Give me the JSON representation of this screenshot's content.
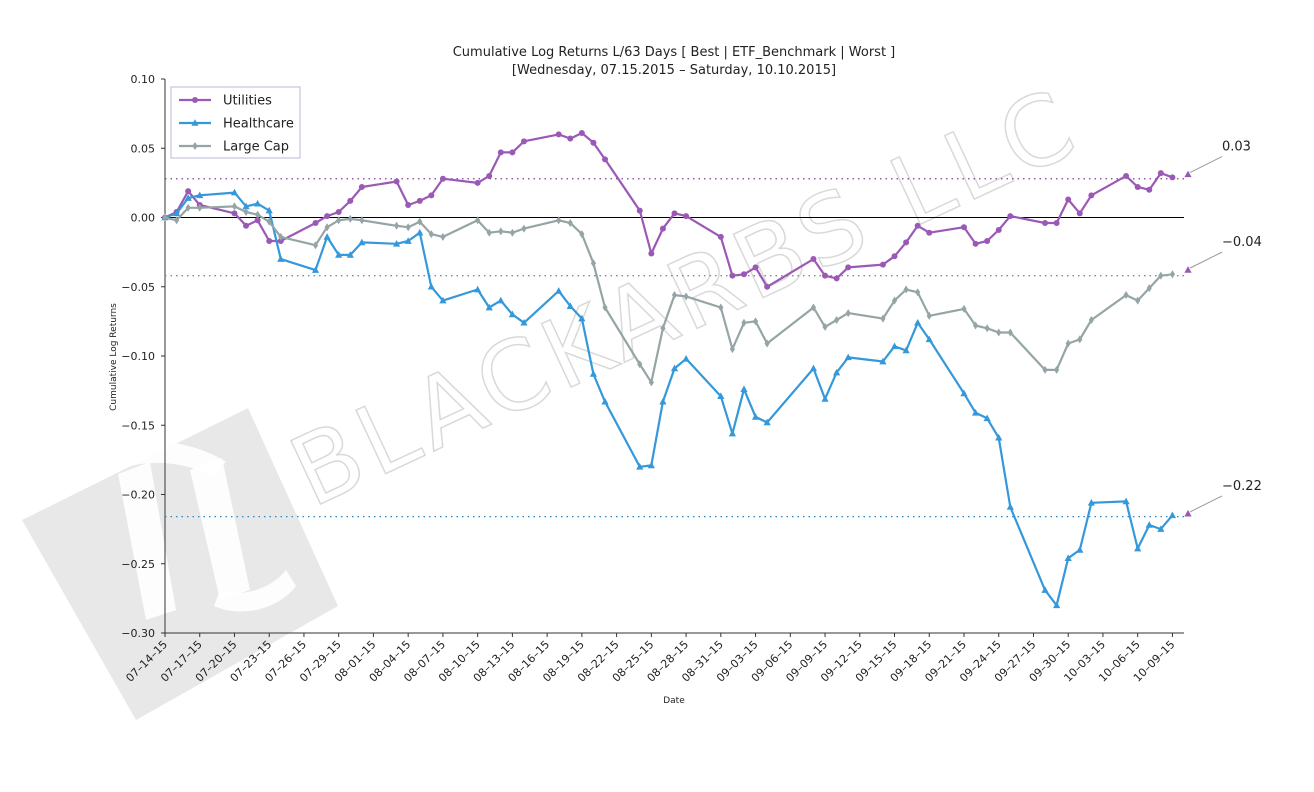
{
  "chart_data": {
    "type": "line",
    "title": "Cumulative Log Returns L/63 Days [ Best | ETF_Benchmark | Worst ]",
    "subtitle": "[Wednesday, 07.15.2015 – Saturday, 10.10.2015]",
    "xlabel": "Date",
    "ylabel": "Cumulative Log Returns",
    "ylim": [
      -0.3,
      0.1
    ],
    "xlim": [
      "2015-07-14",
      "2015-10-10"
    ],
    "grid": false,
    "legend_position": "top-left",
    "y_ticks": [
      "0.10",
      "0.05",
      "0.00",
      "−0.05",
      "−0.10",
      "−0.15",
      "−0.20",
      "−0.25",
      "−0.30"
    ],
    "y_tick_values": [
      0.1,
      0.05,
      0.0,
      -0.05,
      -0.1,
      -0.15,
      -0.2,
      -0.25,
      -0.3
    ],
    "x_ticks": [
      "07–14–15",
      "07–17–15",
      "07–20–15",
      "07–23–15",
      "07–26–15",
      "07–29–15",
      "08–01–15",
      "08–04–15",
      "08–07–15",
      "08–10–15",
      "08–13–15",
      "08–16–15",
      "08–19–15",
      "08–22–15",
      "08–25–15",
      "08–28–15",
      "08–31–15",
      "09–03–15",
      "09–06–15",
      "09–09–15",
      "09–12–15",
      "09–15–15",
      "09–18–15",
      "09–21–15",
      "09–24–15",
      "09–27–15",
      "09–30–15",
      "10–03–15",
      "10–06–15",
      "10–09–15"
    ],
    "x_tick_dates": [
      "2015-07-14",
      "2015-07-17",
      "2015-07-20",
      "2015-07-23",
      "2015-07-26",
      "2015-07-29",
      "2015-08-01",
      "2015-08-04",
      "2015-08-07",
      "2015-08-10",
      "2015-08-13",
      "2015-08-16",
      "2015-08-19",
      "2015-08-22",
      "2015-08-25",
      "2015-08-28",
      "2015-08-31",
      "2015-09-03",
      "2015-09-06",
      "2015-09-09",
      "2015-09-12",
      "2015-09-15",
      "2015-09-18",
      "2015-09-21",
      "2015-09-24",
      "2015-09-27",
      "2015-09-30",
      "2015-10-03",
      "2015-10-06",
      "2015-10-09"
    ],
    "x": [
      "2015-07-14",
      "2015-07-15",
      "2015-07-16",
      "2015-07-17",
      "2015-07-20",
      "2015-07-21",
      "2015-07-22",
      "2015-07-23",
      "2015-07-24",
      "2015-07-27",
      "2015-07-28",
      "2015-07-29",
      "2015-07-30",
      "2015-07-31",
      "2015-08-03",
      "2015-08-04",
      "2015-08-05",
      "2015-08-06",
      "2015-08-07",
      "2015-08-10",
      "2015-08-11",
      "2015-08-12",
      "2015-08-13",
      "2015-08-14",
      "2015-08-17",
      "2015-08-18",
      "2015-08-19",
      "2015-08-20",
      "2015-08-21",
      "2015-08-24",
      "2015-08-25",
      "2015-08-26",
      "2015-08-27",
      "2015-08-28",
      "2015-08-31",
      "2015-09-01",
      "2015-09-02",
      "2015-09-03",
      "2015-09-04",
      "2015-09-08",
      "2015-09-09",
      "2015-09-10",
      "2015-09-11",
      "2015-09-14",
      "2015-09-15",
      "2015-09-16",
      "2015-09-17",
      "2015-09-18",
      "2015-09-21",
      "2015-09-22",
      "2015-09-23",
      "2015-09-24",
      "2015-09-25",
      "2015-09-28",
      "2015-09-29",
      "2015-09-30",
      "2015-10-01",
      "2015-10-02",
      "2015-10-05",
      "2015-10-06",
      "2015-10-07",
      "2015-10-08",
      "2015-10-09"
    ],
    "series": [
      {
        "name": "Utilities",
        "color": "#9b59b6",
        "marker": "circle",
        "values": [
          0.0,
          0.004,
          0.019,
          0.009,
          0.003,
          -0.006,
          -0.002,
          -0.017,
          -0.017,
          -0.004,
          0.001,
          0.004,
          0.012,
          0.022,
          0.026,
          0.009,
          0.012,
          0.016,
          0.028,
          0.025,
          0.03,
          0.047,
          0.047,
          0.055,
          0.06,
          0.057,
          0.061,
          0.054,
          0.042,
          0.005,
          -0.026,
          -0.008,
          0.003,
          0.001,
          -0.014,
          -0.042,
          -0.041,
          -0.036,
          -0.05,
          -0.03,
          -0.042,
          -0.044,
          -0.036,
          -0.034,
          -0.028,
          -0.018,
          -0.006,
          -0.011,
          -0.007,
          -0.019,
          -0.017,
          -0.009,
          0.001,
          -0.004,
          -0.004,
          0.013,
          0.003,
          0.016,
          0.03,
          0.022,
          0.02,
          0.032,
          0.029
        ]
      },
      {
        "name": "Healthcare",
        "color": "#3498db",
        "marker": "triangle",
        "values": [
          0.0,
          0.003,
          0.014,
          0.016,
          0.018,
          0.008,
          0.01,
          0.005,
          -0.03,
          -0.038,
          -0.014,
          -0.027,
          -0.027,
          -0.018,
          -0.019,
          -0.017,
          -0.011,
          -0.05,
          -0.06,
          -0.052,
          -0.065,
          -0.06,
          -0.07,
          -0.076,
          -0.053,
          -0.064,
          -0.073,
          -0.113,
          -0.133,
          -0.18,
          -0.179,
          -0.133,
          -0.109,
          -0.102,
          -0.129,
          -0.156,
          -0.124,
          -0.144,
          -0.148,
          -0.109,
          -0.131,
          -0.112,
          -0.101,
          -0.104,
          -0.093,
          -0.096,
          -0.076,
          -0.088,
          -0.127,
          -0.141,
          -0.145,
          -0.159,
          -0.209,
          -0.269,
          -0.28,
          -0.246,
          -0.24,
          -0.206,
          -0.205,
          -0.239,
          -0.222,
          -0.225,
          -0.215
        ]
      },
      {
        "name": "Large Cap",
        "color": "#95a5a6",
        "marker": "diamond",
        "values": [
          0.0,
          -0.002,
          0.007,
          0.007,
          0.008,
          0.004,
          0.002,
          -0.003,
          -0.014,
          -0.02,
          -0.007,
          -0.002,
          -0.001,
          -0.002,
          -0.006,
          -0.007,
          -0.003,
          -0.012,
          -0.014,
          -0.002,
          -0.011,
          -0.01,
          -0.011,
          -0.008,
          -0.002,
          -0.004,
          -0.012,
          -0.033,
          -0.065,
          -0.106,
          -0.119,
          -0.08,
          -0.056,
          -0.057,
          -0.065,
          -0.095,
          -0.076,
          -0.075,
          -0.091,
          -0.065,
          -0.079,
          -0.074,
          -0.069,
          -0.073,
          -0.06,
          -0.052,
          -0.054,
          -0.071,
          -0.066,
          -0.078,
          -0.08,
          -0.083,
          -0.083,
          -0.11,
          -0.11,
          -0.091,
          -0.088,
          -0.074,
          -0.056,
          -0.06,
          -0.051,
          -0.042,
          -0.041
        ]
      }
    ],
    "reference_lines": [
      {
        "value": 0.028,
        "color": "#7d3c98",
        "style": "dotted"
      },
      {
        "value": -0.042,
        "color": "#7f8c8d",
        "style": "dotted"
      },
      {
        "value": -0.216,
        "color": "#2e86c1",
        "style": "dotted"
      }
    ],
    "annotations": [
      {
        "label": "0.03",
        "value": 0.031
      },
      {
        "label": "−0.04",
        "value": -0.038
      },
      {
        "label": "−0.22",
        "value": -0.214
      }
    ],
    "zero_line": true
  },
  "watermark": {
    "text": "BLACKARBS LLC",
    "color": "#d9d9d9"
  }
}
